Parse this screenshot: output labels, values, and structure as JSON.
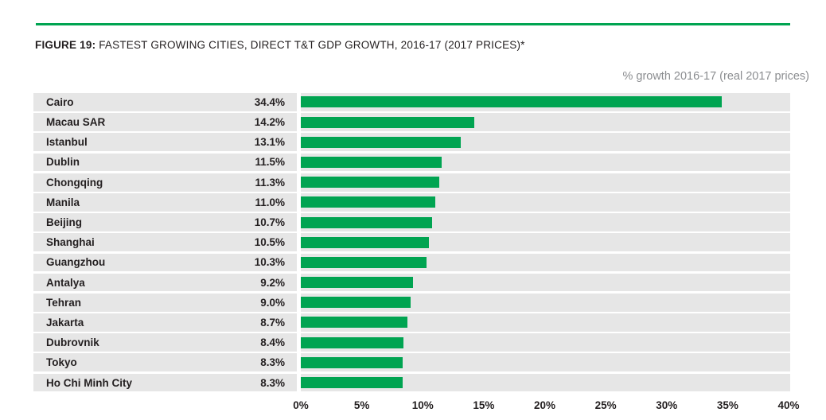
{
  "figure": {
    "label": "FIGURE 19:",
    "title": " FASTEST GROWING CITIES, DIRECT T&T GDP GROWTH, 2016-17 (2017 PRICES)*",
    "unit_label": "% growth 2016-17 (real 2017 prices)"
  },
  "colors": {
    "bar_green": "#00a451",
    "rule_green": "#00a451",
    "row_background": "#e6e6e6",
    "text_dark": "#231f20",
    "text_gray": "#8b8d90"
  },
  "chart_data": {
    "type": "bar",
    "orientation": "horizontal",
    "title": "FIGURE 19: FASTEST GROWING CITIES, DIRECT T&T GDP GROWTH, 2016-17 (2017 PRICES)*",
    "xlabel": "% growth 2016-17 (real 2017 prices)",
    "categories": [
      "Cairo",
      "Macau SAR",
      "Istanbul",
      "Dublin",
      "Chongqing",
      "Manila",
      "Beijing",
      "Shanghai",
      "Guangzhou",
      "Antalya",
      "Tehran",
      "Jakarta",
      "Dubrovnik",
      "Tokyo",
      "Ho Chi Minh City"
    ],
    "values": [
      34.4,
      14.2,
      13.1,
      11.5,
      11.3,
      11.0,
      10.7,
      10.5,
      10.3,
      9.2,
      9.0,
      8.7,
      8.4,
      8.3,
      8.3
    ],
    "value_labels": [
      "34.4%",
      "14.2%",
      "13.1%",
      "11.5%",
      "11.3%",
      "11.0%",
      "10.7%",
      "10.5%",
      "10.3%",
      "9.2%",
      "9.0%",
      "8.7%",
      "8.4%",
      "8.3%",
      "8.3%"
    ],
    "xlim": [
      0,
      40
    ],
    "x_ticks": [
      "0%",
      "5%",
      "10%",
      "15%",
      "20%",
      "25%",
      "30%",
      "35%",
      "40%"
    ],
    "grid": false,
    "legend": null
  }
}
